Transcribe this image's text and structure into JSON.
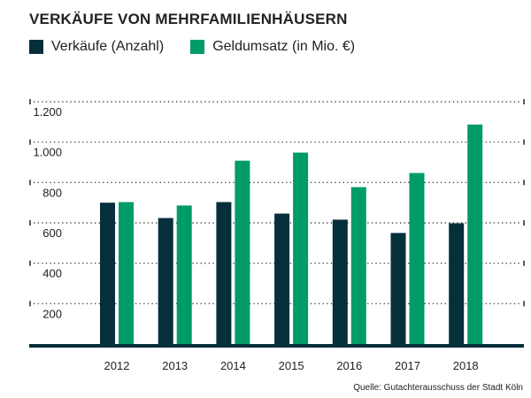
{
  "chart_data": {
    "type": "bar",
    "title": "VERKÄUFE VON MEHRFAMILIENHÄUSERN",
    "categories": [
      "2012",
      "2013",
      "2014",
      "2015",
      "2016",
      "2017",
      "2018"
    ],
    "series": [
      {
        "name": "Verkäufe (Anzahl)",
        "color": "#062f3c",
        "values": [
          700,
          624,
          703,
          646,
          616,
          550,
          598
        ]
      },
      {
        "name": "Geldumsatz (in Mio. €)",
        "color": "#009b69",
        "values": [
          703,
          686,
          908,
          948,
          777,
          847,
          1087
        ]
      }
    ],
    "yticks": [
      "200",
      "400",
      "600",
      "800",
      "1.000",
      "1.200"
    ],
    "ytick_values": [
      200,
      400,
      600,
      800,
      1000,
      1200
    ],
    "ylim": [
      0,
      1200
    ],
    "grid": true,
    "legend_placement": "top-left",
    "source": "Quelle: Gutachterausschuss der Stadt Köln"
  }
}
